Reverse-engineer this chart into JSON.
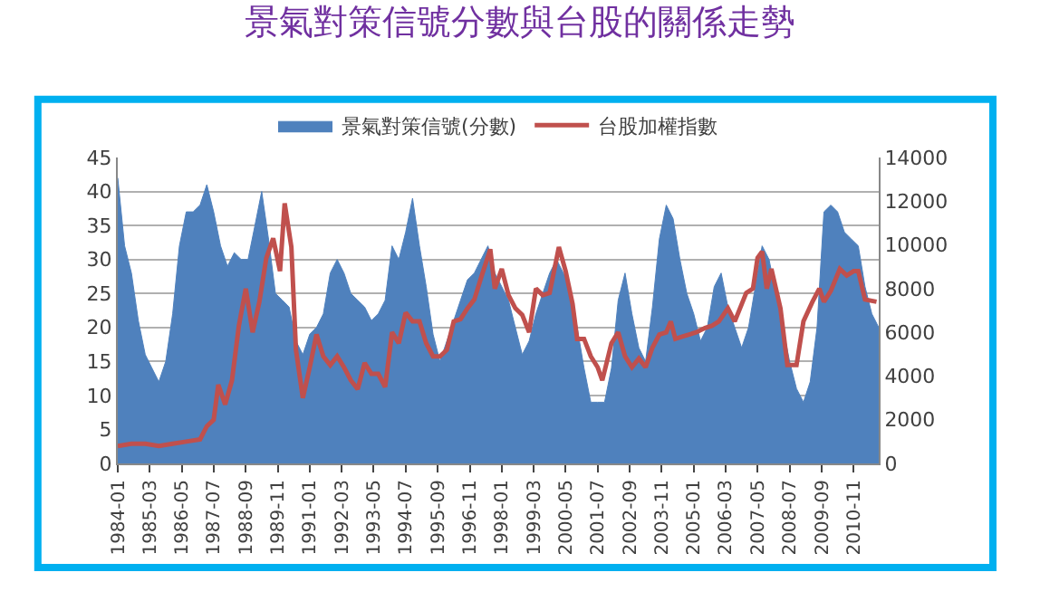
{
  "chart_data": {
    "type": "area",
    "title": "景氣對策信號分數與台股的關係走勢",
    "xlim": [
      "1984-01",
      "2011-10"
    ],
    "xticks": [
      {
        "value": "1984-01",
        "label": "1984-01"
      },
      {
        "value": "1985-03",
        "label": "1985-03"
      },
      {
        "value": "1986-05",
        "label": "1986-05"
      },
      {
        "value": "1987-07",
        "label": "1987-07"
      },
      {
        "value": "1988-09",
        "label": "1988-09"
      },
      {
        "value": "1989-11",
        "label": "1989-11"
      },
      {
        "value": "1991-01",
        "label": "1991-01"
      },
      {
        "value": "1992-03",
        "label": "1992-03"
      },
      {
        "value": "1993-05",
        "label": "1993-05"
      },
      {
        "value": "1994-07",
        "label": "1994-07"
      },
      {
        "value": "1995-09",
        "label": "1995-09"
      },
      {
        "value": "1996-11",
        "label": "1996-11"
      },
      {
        "value": "1998-01",
        "label": "1998-01"
      },
      {
        "value": "1999-03",
        "label": "1999-03"
      },
      {
        "value": "2000-05",
        "label": "2000-05"
      },
      {
        "value": "2001-07",
        "label": "2001-07"
      },
      {
        "value": "2002-09",
        "label": "2002-09"
      },
      {
        "value": "2003-11",
        "label": "2003-11"
      },
      {
        "value": "2005-01",
        "label": "2005-01"
      },
      {
        "value": "2006-03",
        "label": "2006-03"
      },
      {
        "value": "2007-05",
        "label": "2007-05"
      },
      {
        "value": "2008-07",
        "label": "2008-07"
      },
      {
        "value": "2009-09",
        "label": "2009-09"
      },
      {
        "value": "2010-11",
        "label": "2010-11"
      }
    ],
    "ylim": [
      0,
      45
    ],
    "yticks": [
      0,
      5,
      10,
      15,
      20,
      25,
      30,
      35,
      40,
      45
    ],
    "y2lim": [
      0,
      14000
    ],
    "y2ticks": [
      0,
      2000,
      4000,
      6000,
      8000,
      10000,
      12000,
      14000
    ],
    "grid": "y",
    "legend": "top",
    "series": [
      {
        "name": "景氣對策信號(分數)",
        "color": "#4f81bd",
        "x": [
          "1984-01",
          "1984-04",
          "1984-07",
          "1984-10",
          "1985-01",
          "1985-04",
          "1985-07",
          "1985-10",
          "1986-01",
          "1986-04",
          "1986-07",
          "1986-10",
          "1987-01",
          "1987-04",
          "1987-07",
          "1987-10",
          "1988-01",
          "1988-04",
          "1988-07",
          "1988-10",
          "1989-01",
          "1989-04",
          "1989-07",
          "1989-10",
          "1990-01",
          "1990-04",
          "1990-07",
          "1990-10",
          "1991-01",
          "1991-04",
          "1991-07",
          "1991-10",
          "1992-01",
          "1992-04",
          "1992-07",
          "1992-10",
          "1993-01",
          "1993-04",
          "1993-07",
          "1993-10",
          "1994-01",
          "1994-04",
          "1994-07",
          "1994-10",
          "1995-01",
          "1995-04",
          "1995-07",
          "1995-10",
          "1996-01",
          "1996-04",
          "1996-07",
          "1996-10",
          "1997-01",
          "1997-04",
          "1997-07",
          "1997-10",
          "1998-01",
          "1998-04",
          "1998-07",
          "1998-10",
          "1999-01",
          "1999-04",
          "1999-07",
          "1999-10",
          "2000-01",
          "2000-04",
          "2000-07",
          "2000-10",
          "2001-01",
          "2001-04",
          "2001-07",
          "2001-10",
          "2002-01",
          "2002-04",
          "2002-07",
          "2002-10",
          "2003-01",
          "2003-04",
          "2003-07",
          "2003-10",
          "2004-01",
          "2004-04",
          "2004-07",
          "2004-10",
          "2005-01",
          "2005-04",
          "2005-07",
          "2005-10",
          "2006-01",
          "2006-04",
          "2006-07",
          "2006-10",
          "2007-01",
          "2007-04",
          "2007-07",
          "2007-10",
          "2008-01",
          "2008-04",
          "2008-07",
          "2008-10",
          "2009-01",
          "2009-04",
          "2009-07",
          "2009-10",
          "2010-01",
          "2010-04",
          "2010-07",
          "2010-10",
          "2011-01",
          "2011-04",
          "2011-07",
          "2011-10"
        ],
        "values": [
          42,
          32,
          28,
          21,
          16,
          14,
          12,
          15,
          22,
          32,
          37,
          37,
          38,
          41,
          37,
          32,
          29,
          31,
          30,
          30,
          35,
          40,
          33,
          25,
          24,
          23,
          18,
          16,
          19,
          20,
          22,
          28,
          30,
          28,
          25,
          24,
          23,
          21,
          22,
          24,
          32,
          30,
          34,
          39,
          32,
          26,
          19,
          15,
          18,
          21,
          24,
          27,
          28,
          30,
          32,
          28,
          26,
          24,
          20,
          16,
          18,
          22,
          25,
          28,
          30,
          28,
          26,
          20,
          14,
          9,
          9,
          9,
          14,
          24,
          28,
          22,
          17,
          15,
          23,
          33,
          38,
          36,
          30,
          25,
          22,
          18,
          20,
          26,
          28,
          23,
          20,
          17,
          20,
          26,
          32,
          30,
          25,
          20,
          15,
          11,
          9,
          12,
          20,
          37,
          38,
          37,
          34,
          33,
          32,
          26,
          22,
          20
        ]
      },
      {
        "name": "台股加權指數",
        "type": "line",
        "axis": "y2",
        "color": "#c0504d",
        "x": [
          "1984-01",
          "1984-07",
          "1985-01",
          "1985-07",
          "1986-01",
          "1986-07",
          "1987-01",
          "1987-04",
          "1987-07",
          "1987-09",
          "1987-12",
          "1988-03",
          "1988-06",
          "1988-09",
          "1988-12",
          "1989-03",
          "1989-06",
          "1989-09",
          "1989-12",
          "1990-02",
          "1990-05",
          "1990-07",
          "1990-10",
          "1991-01",
          "1991-04",
          "1991-07",
          "1991-10",
          "1992-01",
          "1992-04",
          "1992-07",
          "1992-10",
          "1993-01",
          "1993-04",
          "1993-07",
          "1993-10",
          "1994-01",
          "1994-04",
          "1994-07",
          "1994-10",
          "1995-01",
          "1995-04",
          "1995-07",
          "1995-10",
          "1996-01",
          "1996-04",
          "1996-07",
          "1996-10",
          "1997-01",
          "1997-04",
          "1997-08",
          "1997-10",
          "1998-01",
          "1998-04",
          "1998-07",
          "1998-10",
          "1999-01",
          "1999-04",
          "1999-07",
          "1999-10",
          "2000-02",
          "2000-05",
          "2000-08",
          "2000-10",
          "2001-01",
          "2001-04",
          "2001-07",
          "2001-09",
          "2002-01",
          "2002-04",
          "2002-07",
          "2002-10",
          "2003-01",
          "2003-04",
          "2003-07",
          "2003-10",
          "2004-01",
          "2004-03",
          "2004-05",
          "2004-08",
          "2004-11",
          "2005-02",
          "2005-06",
          "2005-09",
          "2005-12",
          "2006-04",
          "2006-07",
          "2006-12",
          "2007-03",
          "2007-05",
          "2007-07",
          "2007-09",
          "2007-11",
          "2008-03",
          "2008-06",
          "2008-10",
          "2009-01",
          "2009-05",
          "2009-08",
          "2009-10",
          "2010-01",
          "2010-05",
          "2010-08",
          "2010-11",
          "2011-01",
          "2011-04",
          "2011-09"
        ],
        "values": [
          800,
          900,
          900,
          800,
          900,
          1000,
          1100,
          1700,
          2000,
          3600,
          2700,
          3800,
          6300,
          8000,
          6000,
          7400,
          9400,
          10300,
          8800,
          11900,
          9900,
          5200,
          3000,
          4400,
          5900,
          4900,
          4500,
          4900,
          4400,
          3800,
          3400,
          4600,
          4100,
          4100,
          3500,
          6000,
          5500,
          6900,
          6500,
          6500,
          5500,
          4900,
          4900,
          5200,
          6500,
          6600,
          7100,
          7500,
          8500,
          9800,
          8000,
          8900,
          7700,
          7100,
          6800,
          6000,
          8000,
          7700,
          7800,
          9900,
          8800,
          7300,
          5700,
          5700,
          4900,
          4400,
          3800,
          5500,
          6000,
          4900,
          4400,
          4800,
          4400,
          5300,
          5900,
          6000,
          6500,
          5700,
          5800,
          5900,
          6000,
          6200,
          6300,
          6500,
          7100,
          6500,
          7800,
          8000,
          9400,
          9700,
          8000,
          8900,
          7100,
          4500,
          4500,
          6500,
          7400,
          8000,
          7400,
          7900,
          8900,
          8600,
          8800,
          8800,
          7500,
          7400
        ]
      }
    ]
  }
}
